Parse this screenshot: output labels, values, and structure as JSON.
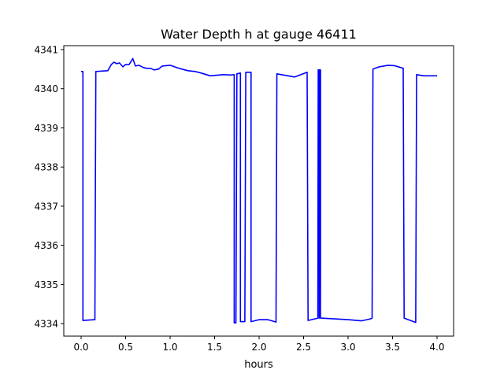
{
  "chart_data": {
    "type": "line",
    "title": "Water Depth h at gauge 46411",
    "xlabel": "hours",
    "ylabel": "",
    "xlim": [
      -0.195,
      4.186
    ],
    "ylim": [
      4333.68,
      4341.1
    ],
    "grid": false,
    "xticks": [
      0,
      0.5,
      1,
      1.5,
      2,
      2.5,
      3,
      3.5,
      4
    ],
    "xtick_labels": [
      "0.0",
      "0.5",
      "1.0",
      "1.5",
      "2.0",
      "2.5",
      "3.0",
      "3.5",
      "4.0"
    ],
    "yticks": [
      4334,
      4335,
      4336,
      4337,
      4338,
      4339,
      4340,
      4341
    ],
    "ytick_labels": [
      "4334",
      "4335",
      "4336",
      "4337",
      "4338",
      "4339",
      "4340",
      "4341"
    ],
    "series": [
      {
        "name": "h",
        "color": "#0000ff",
        "points": [
          [
            0,
            4340.44
          ],
          [
            0.02,
            4340.44
          ],
          [
            0.02,
            4334.08
          ],
          [
            0.155,
            4334.1
          ],
          [
            0.165,
            4340.44
          ],
          [
            0.3,
            4340.46
          ],
          [
            0.34,
            4340.62
          ],
          [
            0.37,
            4340.68
          ],
          [
            0.4,
            4340.64
          ],
          [
            0.43,
            4340.66
          ],
          [
            0.47,
            4340.56
          ],
          [
            0.5,
            4340.62
          ],
          [
            0.54,
            4340.62
          ],
          [
            0.58,
            4340.77
          ],
          [
            0.61,
            4340.58
          ],
          [
            0.65,
            4340.6
          ],
          [
            0.7,
            4340.54
          ],
          [
            0.74,
            4340.52
          ],
          [
            0.78,
            4340.52
          ],
          [
            0.82,
            4340.48
          ],
          [
            0.87,
            4340.5
          ],
          [
            0.91,
            4340.58
          ],
          [
            1.0,
            4340.6
          ],
          [
            1.05,
            4340.56
          ],
          [
            1.1,
            4340.52
          ],
          [
            1.2,
            4340.46
          ],
          [
            1.28,
            4340.44
          ],
          [
            1.35,
            4340.4
          ],
          [
            1.45,
            4340.33
          ],
          [
            1.5,
            4340.34
          ],
          [
            1.6,
            4340.36
          ],
          [
            1.68,
            4340.35
          ],
          [
            1.72,
            4340.36
          ],
          [
            1.72,
            4334.02
          ],
          [
            1.74,
            4334.02
          ],
          [
            1.75,
            4340.38
          ],
          [
            1.79,
            4340.4
          ],
          [
            1.79,
            4334.05
          ],
          [
            1.84,
            4334.05
          ],
          [
            1.85,
            4340.42
          ],
          [
            1.91,
            4340.42
          ],
          [
            1.91,
            4334.05
          ],
          [
            2.0,
            4334.1
          ],
          [
            2.1,
            4334.1
          ],
          [
            2.19,
            4334.04
          ],
          [
            2.2,
            4340.38
          ],
          [
            2.3,
            4340.34
          ],
          [
            2.4,
            4340.3
          ],
          [
            2.54,
            4340.42
          ],
          [
            2.55,
            4334.08
          ],
          [
            2.66,
            4334.14
          ],
          [
            2.665,
            4340.48
          ],
          [
            2.675,
            4340.48
          ],
          [
            2.675,
            4334.14
          ],
          [
            2.68,
            4340.48
          ],
          [
            2.69,
            4340.48
          ],
          [
            2.69,
            4334.14
          ],
          [
            3.0,
            4334.1
          ],
          [
            3.15,
            4334.07
          ],
          [
            3.25,
            4334.12
          ],
          [
            3.27,
            4334.14
          ],
          [
            3.28,
            4340.5
          ],
          [
            3.35,
            4340.56
          ],
          [
            3.45,
            4340.6
          ],
          [
            3.52,
            4340.59
          ],
          [
            3.62,
            4340.52
          ],
          [
            3.63,
            4334.14
          ],
          [
            3.76,
            4334.03
          ],
          [
            3.77,
            4340.36
          ],
          [
            3.85,
            4340.33
          ],
          [
            4.0,
            4340.33
          ]
        ]
      }
    ]
  }
}
